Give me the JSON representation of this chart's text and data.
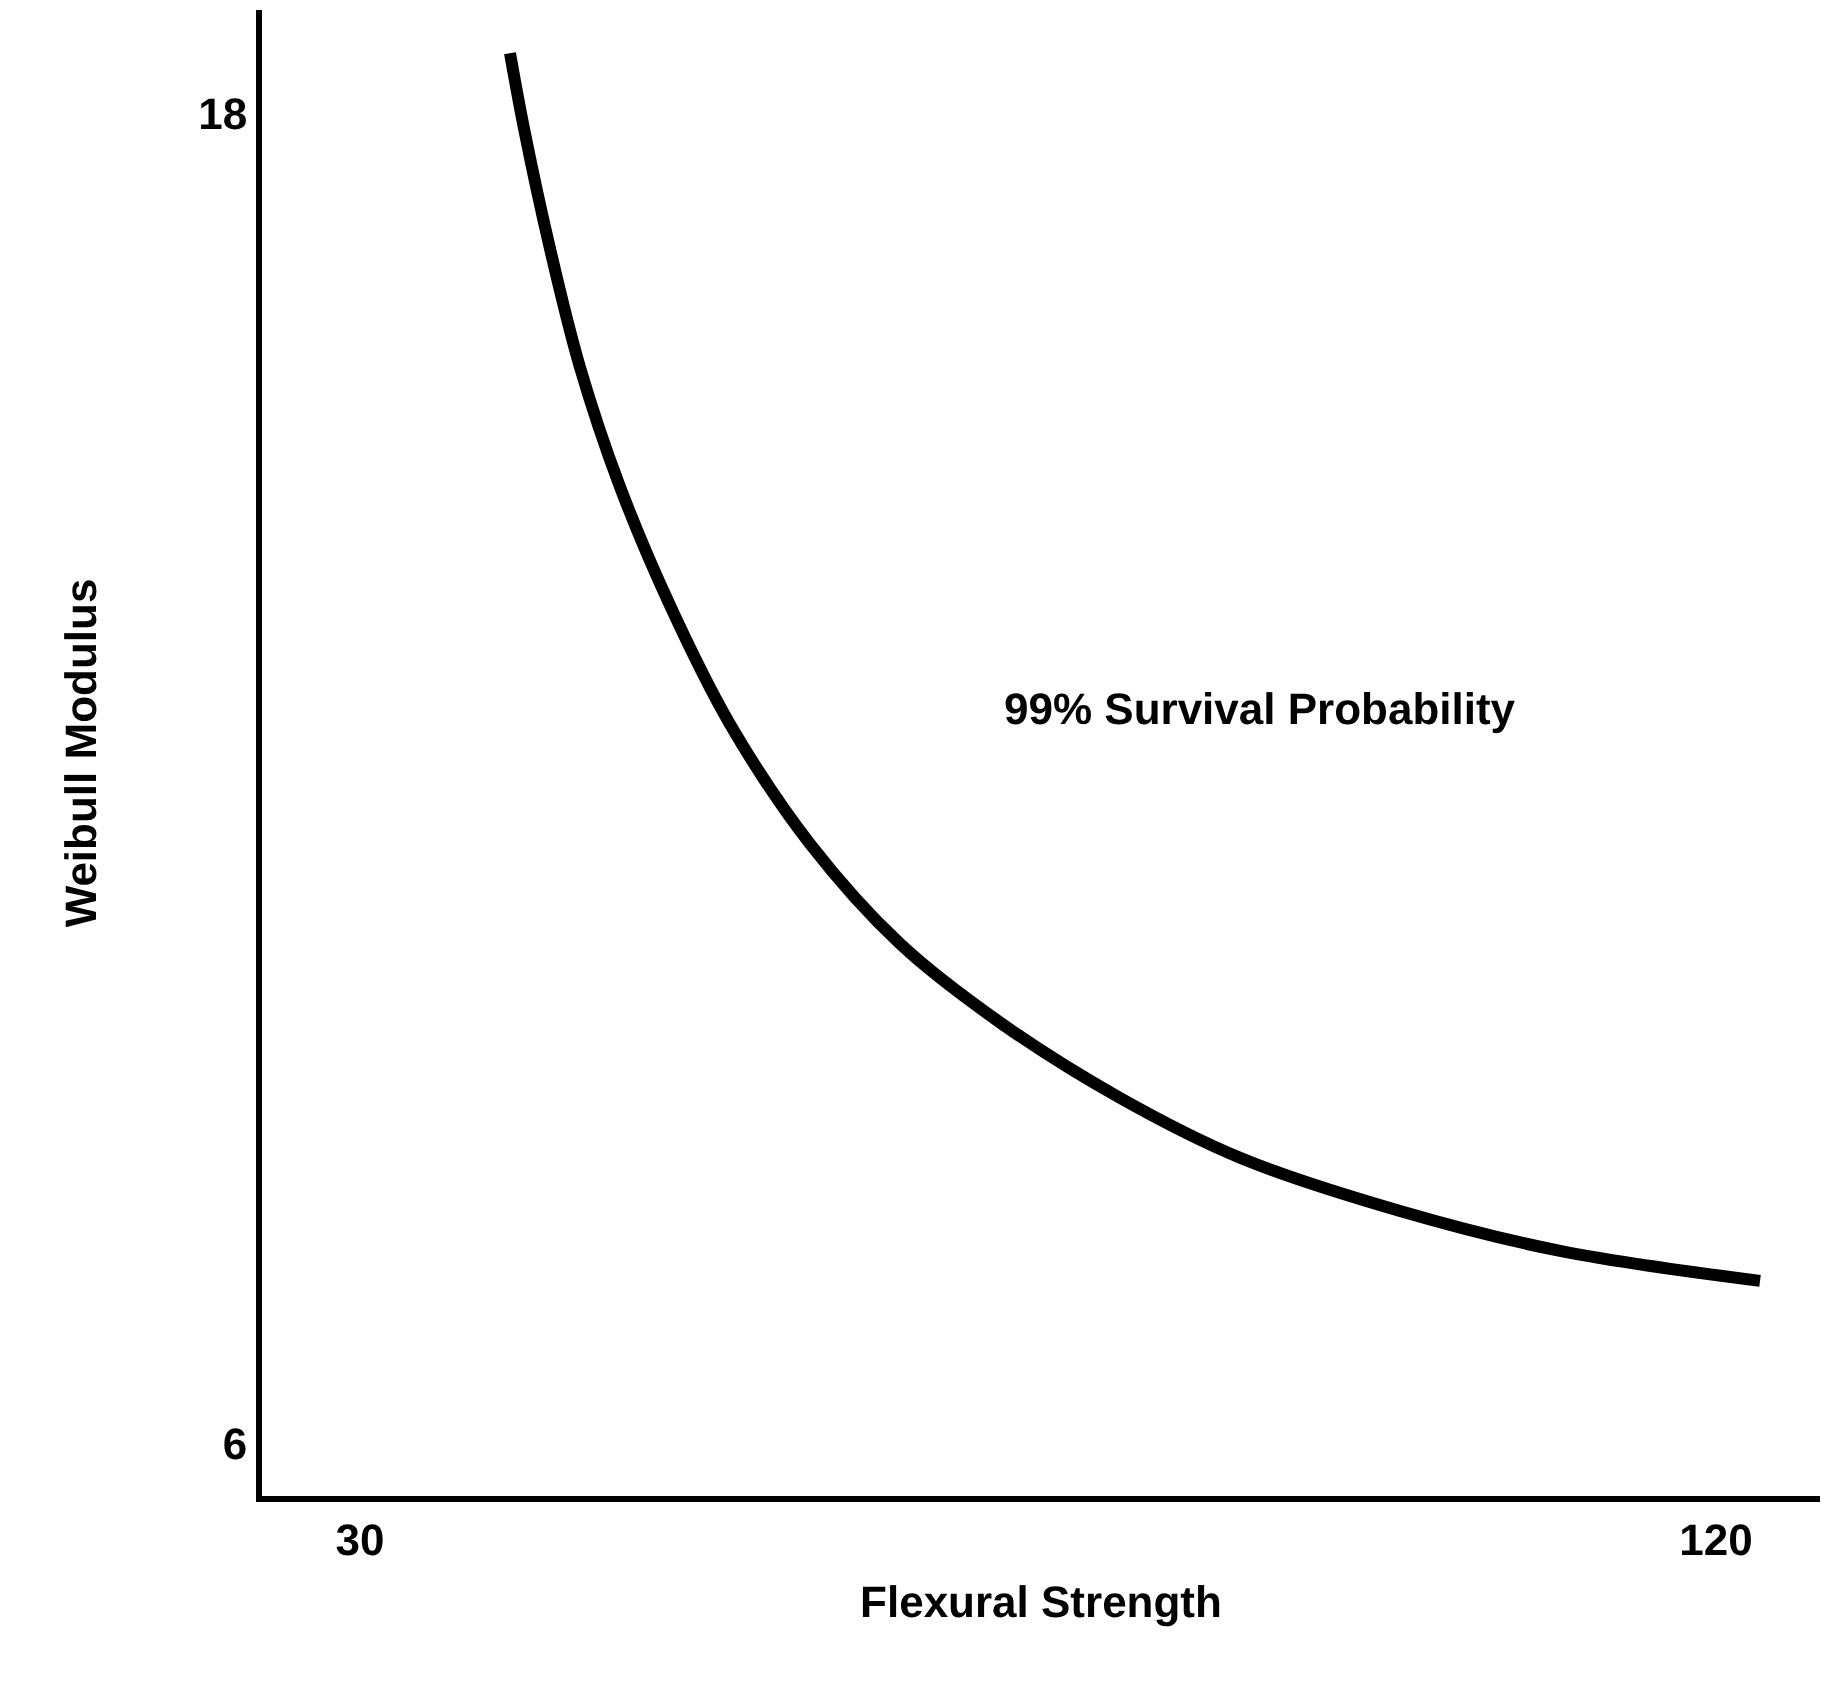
{
  "chart_data": {
    "type": "line",
    "xlabel": "Flexural Strength",
    "ylabel": "Weibull Modulus",
    "x": [
      39.96,
      40.89,
      42.61,
      44.6,
      47.26,
      50.58,
      54.56,
      59.87,
      65.84,
      72.48,
      80.44,
      88.41,
      99.03,
      109.65,
      122.92
    ],
    "series": [
      {
        "color": "#000000",
        "values": [
          18.54,
          17.86,
          16.78,
          15.71,
          14.63,
          13.56,
          12.49,
          11.41,
          10.51,
          9.8,
          9.12,
          8.58,
          8.1,
          7.74,
          7.47
        ]
      }
    ],
    "xlim": [
      23.5,
      126.9
    ],
    "ylim": [
      5.53,
      18.93
    ],
    "xticks": [
      30,
      120
    ],
    "yticks": [
      6,
      18
    ],
    "annotations": [
      "99% Survival Probability"
    ],
    "grid": false,
    "marker": "none",
    "line_style": "solid"
  }
}
